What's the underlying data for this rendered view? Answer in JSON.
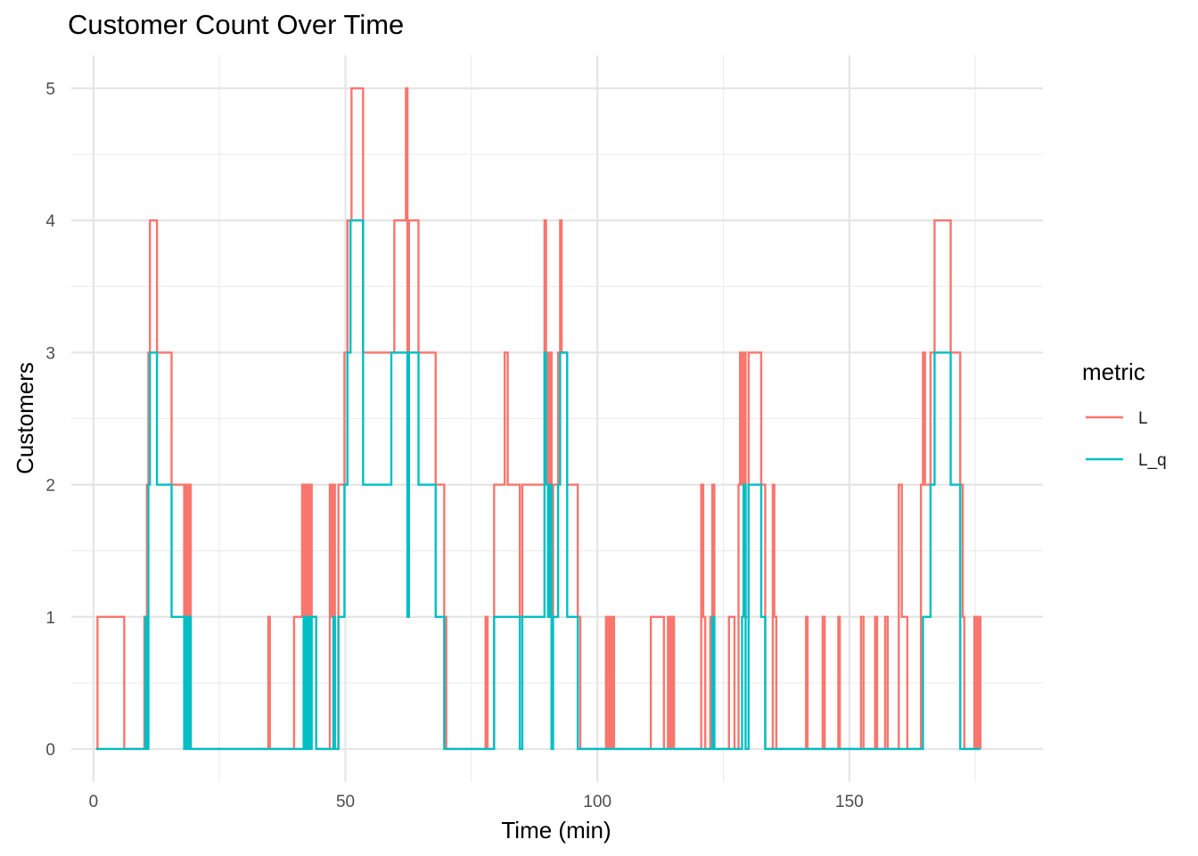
{
  "chart_data": {
    "type": "line",
    "step": true,
    "title": "Customer Count Over Time",
    "xlabel": "Time (min)",
    "ylabel": "Customers",
    "xlim": [
      -4.4,
      188.4
    ],
    "ylim": [
      -0.25,
      5.25
    ],
    "x_ticks": [
      0,
      50,
      100,
      150
    ],
    "y_ticks": [
      0,
      1,
      2,
      3,
      4,
      5
    ],
    "grid": true,
    "legend": {
      "title": "metric",
      "position": "right"
    },
    "series": [
      {
        "name": "L",
        "color": "#F8766D",
        "points": [
          [
            0.5,
            0
          ],
          [
            0.8,
            1
          ],
          [
            6.1,
            0
          ],
          [
            10.1,
            1
          ],
          [
            10.6,
            2
          ],
          [
            10.9,
            3
          ],
          [
            11.2,
            4
          ],
          [
            12.6,
            3
          ],
          [
            15.5,
            2
          ],
          [
            18.0,
            1
          ],
          [
            18.3,
            2
          ],
          [
            18.6,
            0
          ],
          [
            19.0,
            2
          ],
          [
            19.3,
            0
          ],
          [
            34.7,
            1
          ],
          [
            35.0,
            0
          ],
          [
            39.8,
            1
          ],
          [
            41.4,
            2
          ],
          [
            41.7,
            1
          ],
          [
            42.1,
            2
          ],
          [
            42.5,
            1
          ],
          [
            42.9,
            2
          ],
          [
            43.3,
            1
          ],
          [
            44.2,
            0
          ],
          [
            46.9,
            2
          ],
          [
            47.2,
            1
          ],
          [
            47.6,
            2
          ],
          [
            47.9,
            0
          ],
          [
            48.6,
            2
          ],
          [
            49.8,
            3
          ],
          [
            50.4,
            4
          ],
          [
            51.2,
            5
          ],
          [
            53.5,
            3
          ],
          [
            59.7,
            4
          ],
          [
            62.0,
            5
          ],
          [
            62.3,
            2
          ],
          [
            62.6,
            4
          ],
          [
            64.5,
            3
          ],
          [
            67.9,
            2
          ],
          [
            69.6,
            1
          ],
          [
            70.0,
            0
          ],
          [
            77.8,
            1
          ],
          [
            78.2,
            0
          ],
          [
            79.5,
            2
          ],
          [
            81.6,
            3
          ],
          [
            82.2,
            2
          ],
          [
            84.6,
            1
          ],
          [
            85.1,
            2
          ],
          [
            89.5,
            4
          ],
          [
            89.8,
            3
          ],
          [
            90.2,
            2
          ],
          [
            90.5,
            3
          ],
          [
            90.9,
            1
          ],
          [
            91.2,
            2
          ],
          [
            92.2,
            3
          ],
          [
            92.6,
            4
          ],
          [
            92.9,
            3
          ],
          [
            94.0,
            2
          ],
          [
            96.1,
            1
          ],
          [
            96.6,
            0
          ],
          [
            101.7,
            1
          ],
          [
            102.0,
            0
          ],
          [
            102.3,
            1
          ],
          [
            102.6,
            0
          ],
          [
            103.0,
            1
          ],
          [
            103.3,
            0
          ],
          [
            110.6,
            1
          ],
          [
            113.2,
            0
          ],
          [
            114.0,
            1
          ],
          [
            114.4,
            0
          ],
          [
            114.8,
            1
          ],
          [
            115.2,
            0
          ],
          [
            120.6,
            2
          ],
          [
            121.0,
            1
          ],
          [
            121.4,
            0
          ],
          [
            122.4,
            1
          ],
          [
            122.8,
            2
          ],
          [
            123.2,
            0
          ],
          [
            126.1,
            1
          ],
          [
            127.2,
            0
          ],
          [
            128.0,
            2
          ],
          [
            128.3,
            3
          ],
          [
            128.7,
            2
          ],
          [
            129.0,
            3
          ],
          [
            129.4,
            1
          ],
          [
            130.0,
            3
          ],
          [
            132.5,
            2
          ],
          [
            133.3,
            0
          ],
          [
            134.8,
            2
          ],
          [
            135.1,
            1
          ],
          [
            135.5,
            0
          ],
          [
            141.4,
            1
          ],
          [
            141.7,
            0
          ],
          [
            144.7,
            1
          ],
          [
            145.1,
            0
          ],
          [
            147.8,
            1
          ],
          [
            148.1,
            0
          ],
          [
            152.3,
            1
          ],
          [
            152.8,
            0
          ],
          [
            155.1,
            1
          ],
          [
            155.5,
            0
          ],
          [
            157.1,
            1
          ],
          [
            157.6,
            0
          ],
          [
            159.8,
            2
          ],
          [
            160.4,
            1
          ],
          [
            161.5,
            0
          ],
          [
            164.2,
            2
          ],
          [
            164.6,
            3
          ],
          [
            165.0,
            2
          ],
          [
            166.1,
            3
          ],
          [
            166.9,
            4
          ],
          [
            170.1,
            3
          ],
          [
            172.0,
            2
          ],
          [
            172.5,
            1
          ],
          [
            172.8,
            0
          ],
          [
            174.8,
            1
          ],
          [
            175.2,
            0
          ],
          [
            175.6,
            1
          ],
          [
            176.0,
            0
          ]
        ]
      },
      {
        "name": "L_q",
        "color": "#00BFC4",
        "points": [
          [
            0.5,
            0
          ],
          [
            10.3,
            1
          ],
          [
            10.6,
            0
          ],
          [
            10.9,
            2
          ],
          [
            11.2,
            3
          ],
          [
            12.6,
            2
          ],
          [
            15.5,
            1
          ],
          [
            18.0,
            0
          ],
          [
            18.3,
            1
          ],
          [
            18.6,
            0
          ],
          [
            19.0,
            1
          ],
          [
            19.3,
            0
          ],
          [
            41.7,
            1
          ],
          [
            42.1,
            0
          ],
          [
            42.5,
            1
          ],
          [
            42.9,
            0
          ],
          [
            43.3,
            1
          ],
          [
            44.2,
            0
          ],
          [
            47.6,
            1
          ],
          [
            47.9,
            0
          ],
          [
            48.6,
            1
          ],
          [
            49.8,
            2
          ],
          [
            50.4,
            3
          ],
          [
            51.0,
            4
          ],
          [
            53.5,
            2
          ],
          [
            59.1,
            3
          ],
          [
            62.3,
            1
          ],
          [
            62.6,
            3
          ],
          [
            64.5,
            2
          ],
          [
            67.9,
            1
          ],
          [
            69.6,
            0
          ],
          [
            79.5,
            1
          ],
          [
            84.6,
            0
          ],
          [
            85.1,
            1
          ],
          [
            89.5,
            3
          ],
          [
            89.8,
            2
          ],
          [
            90.2,
            1
          ],
          [
            90.5,
            2
          ],
          [
            90.9,
            0
          ],
          [
            91.2,
            1
          ],
          [
            92.2,
            2
          ],
          [
            92.6,
            3
          ],
          [
            94.0,
            1
          ],
          [
            96.1,
            0
          ],
          [
            122.4,
            0
          ],
          [
            122.8,
            1
          ],
          [
            123.2,
            0
          ],
          [
            128.7,
            1
          ],
          [
            129.0,
            2
          ],
          [
            129.4,
            0
          ],
          [
            130.0,
            2
          ],
          [
            132.5,
            1
          ],
          [
            133.3,
            0
          ],
          [
            135.1,
            0
          ],
          [
            164.6,
            1
          ],
          [
            166.1,
            2
          ],
          [
            166.9,
            3
          ],
          [
            170.1,
            2
          ],
          [
            172.0,
            0
          ],
          [
            176.0,
            0
          ]
        ]
      }
    ]
  }
}
